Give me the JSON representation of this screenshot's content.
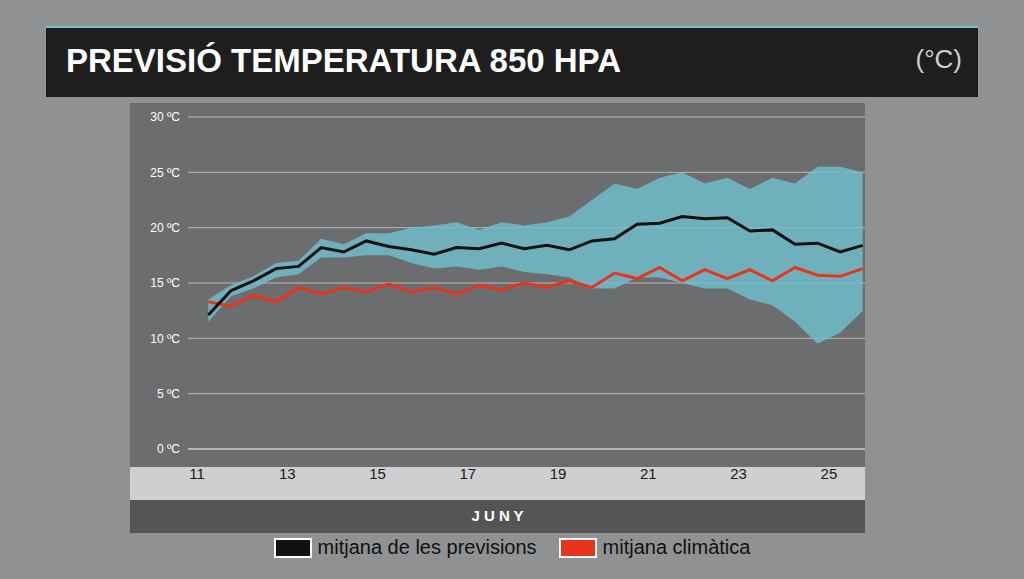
{
  "chart_data": {
    "type": "line",
    "title": "PREVISIÓ TEMPERATURA 850 HPA",
    "subtitle": "(°C)",
    "xlabel": "J U N Y",
    "x": [
      11.25,
      11.75,
      12.25,
      12.75,
      13.25,
      13.75,
      14.25,
      14.75,
      15.25,
      15.75,
      16.25,
      16.75,
      17.25,
      17.75,
      18.25,
      18.75,
      19.25,
      19.75,
      20.25,
      20.75,
      21.25,
      21.75,
      22.25,
      22.75,
      23.25,
      23.75,
      24.25,
      24.75,
      25.25,
      25.75
    ],
    "xlim": [
      10.8,
      25.8
    ],
    "xticks": [
      11,
      13,
      15,
      17,
      19,
      21,
      23,
      25
    ],
    "ylim": [
      0,
      30
    ],
    "yticks": [
      {
        "value": 0,
        "label": "0 ºC"
      },
      {
        "value": 5,
        "label": "5 ºC"
      },
      {
        "value": 10,
        "label": "10 ºC"
      },
      {
        "value": 15,
        "label": "15 ºC"
      },
      {
        "value": 20,
        "label": "20 ºC"
      },
      {
        "value": 25,
        "label": "25 ºC"
      },
      {
        "value": 30,
        "label": "30 ºC"
      }
    ],
    "grid": true,
    "legend": "bottom",
    "series": [
      {
        "name": "mitjana de les previsions",
        "color": "#111111",
        "values": [
          12.1,
          14.3,
          15.2,
          16.3,
          16.5,
          18.2,
          17.8,
          18.8,
          18.3,
          18.0,
          17.6,
          18.2,
          18.1,
          18.6,
          18.1,
          18.4,
          18.0,
          18.8,
          19.0,
          20.3,
          20.4,
          21.0,
          20.8,
          20.9,
          19.7,
          19.8,
          18.5,
          18.6,
          17.8,
          18.4
        ]
      },
      {
        "name": "mitjana climàtica",
        "color": "#e8341c",
        "values": [
          13.3,
          12.9,
          13.9,
          13.3,
          14.6,
          14.0,
          14.6,
          14.2,
          14.9,
          14.2,
          14.6,
          14.0,
          14.8,
          14.4,
          15.0,
          14.6,
          15.2,
          14.6,
          15.9,
          15.4,
          16.4,
          15.2,
          16.2,
          15.4,
          16.2,
          15.2,
          16.4,
          15.7,
          15.6,
          16.3
        ]
      }
    ],
    "range": {
      "color": "#6fc0cf",
      "low": [
        11.5,
        13.8,
        14.5,
        15.5,
        15.8,
        17.3,
        17.3,
        17.5,
        17.5,
        16.8,
        16.3,
        16.5,
        16.2,
        16.5,
        16.0,
        15.8,
        15.5,
        14.5,
        14.5,
        15.5,
        15.5,
        15.0,
        14.5,
        14.5,
        13.5,
        13.0,
        11.5,
        9.5,
        10.5,
        12.5
      ],
      "high": [
        13.5,
        14.8,
        15.6,
        16.8,
        17.0,
        19.0,
        18.5,
        19.5,
        19.5,
        20.0,
        20.2,
        20.5,
        19.8,
        20.5,
        20.2,
        20.5,
        21.0,
        22.5,
        24.0,
        23.5,
        24.5,
        25.0,
        24.0,
        24.5,
        23.5,
        24.5,
        24.0,
        25.5,
        25.5,
        25.0
      ]
    }
  }
}
